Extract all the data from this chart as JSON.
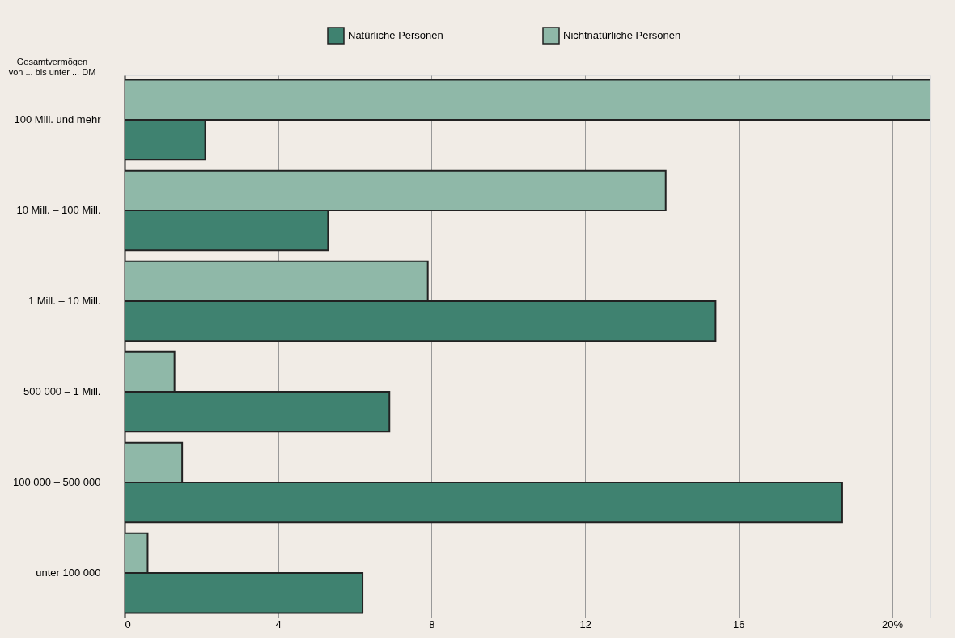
{
  "chart_data": {
    "type": "bar",
    "orientation": "horizontal",
    "ylabel": "Gesamtvermögen von ... bis unter ... DM",
    "categories": [
      "100 Mill. und mehr",
      "10 Mill. – 100 Mill.",
      "1 Mill. – 10 Mill.",
      "500 000 – 1 Mill.",
      "100 000 – 500 000",
      "unter 100 000"
    ],
    "series": [
      {
        "name": "Natürliche Personen",
        "color": "#3f8270",
        "values": [
          2.1,
          5.3,
          15.4,
          6.9,
          18.7,
          6.2
        ]
      },
      {
        "name": "Nichtnatürliche Personen",
        "color": "#8fb8a8",
        "values": [
          21.0,
          14.1,
          7.9,
          1.3,
          1.5,
          0.6
        ]
      }
    ],
    "xlim": [
      0,
      21
    ],
    "xticks": [
      0,
      4,
      8,
      12,
      16,
      {
        "value": 20,
        "label": "20%"
      }
    ],
    "grid": "x",
    "legend": "top"
  }
}
